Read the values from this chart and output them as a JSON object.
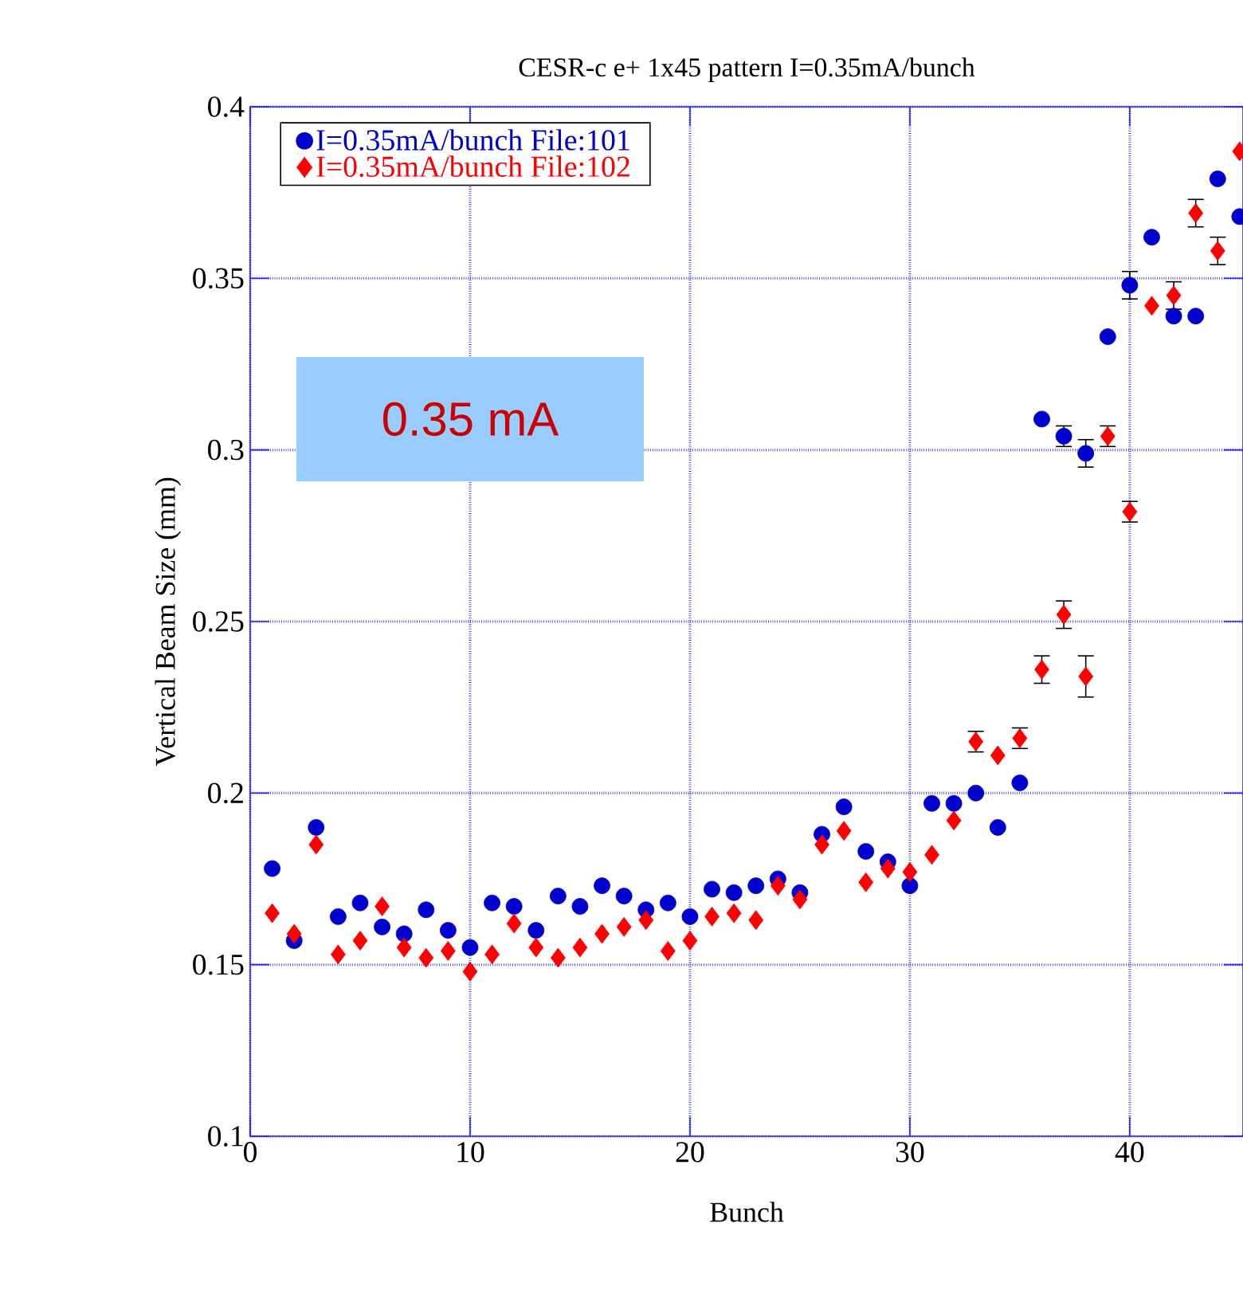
{
  "chart_data": {
    "type": "scatter",
    "title": "CESR-c e+ 1x45 pattern I=0.35mA/bunch",
    "xlabel": "Bunch",
    "ylabel": "Vertical Beam Size (mm)",
    "annotations": [
      "0.35 mA"
    ],
    "x": [
      1,
      2,
      3,
      4,
      5,
      6,
      7,
      8,
      9,
      10,
      11,
      12,
      13,
      14,
      15,
      16,
      17,
      18,
      19,
      20,
      21,
      22,
      23,
      24,
      25,
      26,
      27,
      28,
      29,
      30,
      31,
      32,
      33,
      34,
      35,
      36,
      37,
      38,
      39,
      40,
      41,
      42,
      43,
      44,
      45
    ],
    "series": [
      {
        "name": "I=0.35mA/bunch  File:101",
        "color": "#0000cc",
        "marker": "circle",
        "values": [
          0.178,
          0.157,
          0.19,
          0.164,
          0.168,
          0.161,
          0.159,
          0.166,
          0.16,
          0.155,
          0.168,
          0.167,
          0.16,
          0.17,
          0.167,
          0.173,
          0.17,
          0.166,
          0.168,
          0.164,
          0.172,
          0.171,
          0.173,
          0.175,
          0.171,
          0.188,
          0.196,
          0.183,
          0.18,
          0.173,
          0.197,
          0.197,
          0.2,
          0.19,
          0.203,
          0.309,
          0.304,
          0.299,
          0.333,
          0.348,
          0.362,
          0.339,
          0.339,
          0.379,
          0.368
        ],
        "errors": [
          null,
          null,
          null,
          null,
          null,
          null,
          null,
          null,
          null,
          null,
          null,
          null,
          null,
          null,
          null,
          null,
          null,
          null,
          null,
          null,
          null,
          null,
          null,
          null,
          null,
          null,
          null,
          null,
          null,
          null,
          null,
          null,
          null,
          null,
          null,
          null,
          0.003,
          0.004,
          null,
          0.004,
          null,
          null,
          null,
          null,
          null
        ]
      },
      {
        "name": "I=0.35mA/bunch File:102",
        "color": "#ff0000",
        "marker": "diamond",
        "values": [
          0.165,
          0.159,
          0.185,
          0.153,
          0.157,
          0.167,
          0.155,
          0.152,
          0.154,
          0.148,
          0.153,
          0.162,
          0.155,
          0.152,
          0.155,
          0.159,
          0.161,
          0.163,
          0.154,
          0.157,
          0.164,
          0.165,
          0.163,
          0.173,
          0.169,
          0.185,
          0.189,
          0.174,
          0.178,
          0.177,
          0.182,
          0.192,
          0.215,
          0.211,
          0.216,
          0.236,
          0.252,
          0.234,
          0.304,
          0.282,
          0.342,
          0.345,
          0.369,
          0.358,
          0.387
        ],
        "errors": [
          null,
          null,
          null,
          null,
          null,
          null,
          null,
          null,
          null,
          null,
          null,
          null,
          null,
          null,
          null,
          null,
          null,
          null,
          null,
          null,
          null,
          null,
          null,
          null,
          null,
          null,
          null,
          null,
          null,
          null,
          null,
          null,
          0.003,
          null,
          0.003,
          0.004,
          0.004,
          0.006,
          0.003,
          0.003,
          null,
          0.004,
          0.004,
          0.004,
          null
        ]
      }
    ],
    "xlim": [
      0,
      45.15
    ],
    "xticks": [
      0,
      10,
      20,
      30,
      40
    ],
    "ylim": [
      0.1,
      0.4
    ],
    "yticks": [
      0.1,
      0.15,
      0.2,
      0.25,
      0.3,
      0.35,
      0.4
    ],
    "grid": true,
    "legend": "top left"
  }
}
